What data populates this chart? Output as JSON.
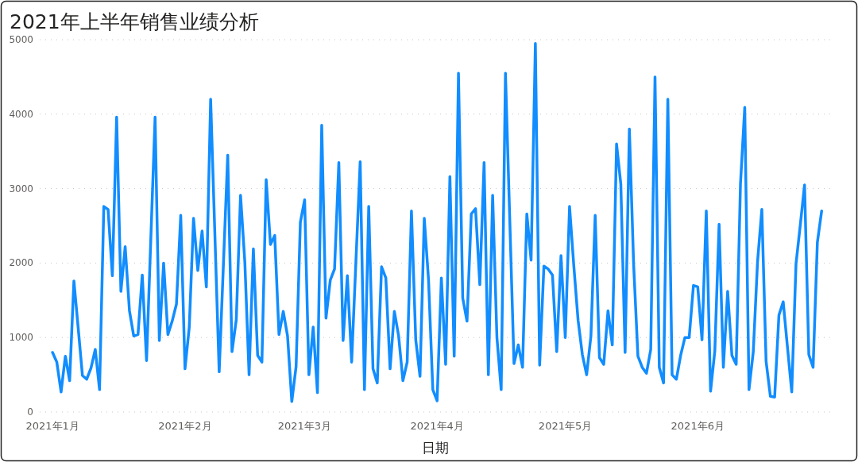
{
  "chart_data": {
    "type": "line",
    "title": "2021年上半年销售业绩分析",
    "xlabel": "日期",
    "x": [
      "2021-01-01",
      "2021-01-02",
      "2021-01-03",
      "2021-01-04",
      "2021-01-05",
      "2021-01-06",
      "2021-01-07",
      "2021-01-08",
      "2021-01-09",
      "2021-01-10",
      "2021-01-11",
      "2021-01-12",
      "2021-01-13",
      "2021-01-14",
      "2021-01-15",
      "2021-01-16",
      "2021-01-17",
      "2021-01-18",
      "2021-01-19",
      "2021-01-20",
      "2021-01-21",
      "2021-01-22",
      "2021-01-23",
      "2021-01-25",
      "2021-01-26",
      "2021-01-27",
      "2021-01-28",
      "2021-01-29",
      "2021-01-30",
      "2021-01-31",
      "2021-02-01",
      "2021-02-02",
      "2021-02-03",
      "2021-02-04",
      "2021-02-05",
      "2021-02-06",
      "2021-02-07",
      "2021-02-09",
      "2021-02-11",
      "2021-02-12",
      "2021-02-13",
      "2021-02-14",
      "2021-02-15",
      "2021-02-16",
      "2021-02-17",
      "2021-02-18",
      "2021-02-19",
      "2021-02-20",
      "2021-02-21",
      "2021-02-22",
      "2021-02-23",
      "2021-02-24",
      "2021-02-25",
      "2021-02-26",
      "2021-02-27",
      "2021-02-28",
      "2021-03-01",
      "2021-03-02",
      "2021-03-03",
      "2021-03-04",
      "2021-03-05",
      "2021-03-06",
      "2021-03-07",
      "2021-03-08",
      "2021-03-09",
      "2021-03-10",
      "2021-03-11",
      "2021-03-12",
      "2021-03-13",
      "2021-03-14",
      "2021-03-15",
      "2021-03-16",
      "2021-03-17",
      "2021-03-18",
      "2021-03-19",
      "2021-03-20",
      "2021-03-21",
      "2021-03-22",
      "2021-03-23",
      "2021-03-24",
      "2021-03-25",
      "2021-03-26",
      "2021-03-27",
      "2021-03-28",
      "2021-03-29",
      "2021-03-30",
      "2021-03-31",
      "2021-04-01",
      "2021-04-02",
      "2021-04-03",
      "2021-04-04",
      "2021-04-05",
      "2021-04-06",
      "2021-04-07",
      "2021-04-08",
      "2021-04-09",
      "2021-04-10",
      "2021-04-11",
      "2021-04-12",
      "2021-04-13",
      "2021-04-14",
      "2021-04-15",
      "2021-04-16",
      "2021-04-17",
      "2021-04-19",
      "2021-04-20",
      "2021-04-21",
      "2021-04-22",
      "2021-04-23",
      "2021-04-24",
      "2021-04-25",
      "2021-04-26",
      "2021-04-27",
      "2021-04-28",
      "2021-04-29",
      "2021-04-30",
      "2021-05-01",
      "2021-05-02",
      "2021-05-03",
      "2021-05-04",
      "2021-05-05",
      "2021-05-06",
      "2021-05-07",
      "2021-05-08",
      "2021-05-09",
      "2021-05-10",
      "2021-05-11",
      "2021-05-12",
      "2021-05-13",
      "2021-05-14",
      "2021-05-15",
      "2021-05-16",
      "2021-05-17",
      "2021-05-18",
      "2021-05-19",
      "2021-05-20",
      "2021-05-21",
      "2021-05-22",
      "2021-05-23",
      "2021-05-24",
      "2021-05-25",
      "2021-05-26",
      "2021-05-27",
      "2021-05-28",
      "2021-05-29",
      "2021-05-30",
      "2021-05-31",
      "2021-06-01",
      "2021-06-02",
      "2021-06-03",
      "2021-06-04",
      "2021-06-05",
      "2021-06-06",
      "2021-06-07",
      "2021-06-08",
      "2021-06-09",
      "2021-06-10",
      "2021-06-11",
      "2021-06-12",
      "2021-06-13",
      "2021-06-14",
      "2021-06-15",
      "2021-06-16",
      "2021-06-17",
      "2021-06-18",
      "2021-06-19",
      "2021-06-20",
      "2021-06-21",
      "2021-06-22",
      "2021-06-23",
      "2021-06-24",
      "2021-06-25",
      "2021-06-26",
      "2021-06-27",
      "2021-06-28",
      "2021-06-29",
      "2021-06-30"
    ],
    "series": [
      {
        "color": "#118dff",
        "values": [
          800,
          670,
          270,
          750,
          420,
          1760,
          1130,
          490,
          440,
          590,
          840,
          300,
          2760,
          2720,
          1830,
          3960,
          1620,
          2220,
          1360,
          1020,
          1040,
          1840,
          690,
          3960,
          960,
          2000,
          1040,
          1220,
          1450,
          2640,
          580,
          1140,
          2600,
          1900,
          2430,
          1680,
          4200,
          540,
          3450,
          810,
          1240,
          2910,
          2020,
          500,
          2190,
          760,
          670,
          3120,
          2250,
          2370,
          1040,
          1350,
          1020,
          140,
          610,
          2550,
          2850,
          500,
          1140,
          260,
          3850,
          1260,
          1770,
          1920,
          3350,
          960,
          1830,
          670,
          2020,
          3360,
          300,
          2760,
          580,
          390,
          1950,
          1800,
          580,
          1350,
          1020,
          420,
          670,
          2700,
          970,
          480,
          2600,
          1770,
          300,
          150,
          1800,
          640,
          3160,
          750,
          4550,
          1530,
          1220,
          2660,
          2730,
          1710,
          3350,
          500,
          2910,
          1000,
          300,
          4550,
          650,
          900,
          600,
          2660,
          2040,
          4950,
          630,
          1960,
          1920,
          1840,
          810,
          2100,
          1000,
          2760,
          1960,
          1230,
          770,
          500,
          1020,
          2640,
          730,
          640,
          1360,
          900,
          3600,
          3060,
          800,
          3800,
          1980,
          750,
          600,
          520,
          840,
          4500,
          600,
          390,
          4200,
          500,
          440,
          760,
          1000,
          1000,
          1700,
          1680,
          970,
          2700,
          280,
          820,
          2520,
          600,
          1620,
          760,
          640,
          3060,
          4090,
          300,
          810,
          2020,
          2720,
          680,
          210,
          200,
          1300,
          1480,
          870,
          270,
          1990,
          2510,
          3050,
          770,
          600,
          2280,
          2700
        ]
      }
    ],
    "xlim": [
      "2020-12-29",
      "2021-07-02"
    ],
    "xticks": [
      {
        "value": "2021-01",
        "label": "2021年1月"
      },
      {
        "value": "2021-02",
        "label": "2021年2月"
      },
      {
        "value": "2021-03",
        "label": "2021年3月"
      },
      {
        "value": "2021-04",
        "label": "2021年4月"
      },
      {
        "value": "2021-05",
        "label": "2021年5月"
      },
      {
        "value": "2021-06",
        "label": "2021年6月"
      }
    ],
    "ylim": [
      0,
      5000
    ],
    "yticks": [
      0,
      1000,
      2000,
      3000,
      4000,
      5000
    ],
    "grid": "y"
  }
}
